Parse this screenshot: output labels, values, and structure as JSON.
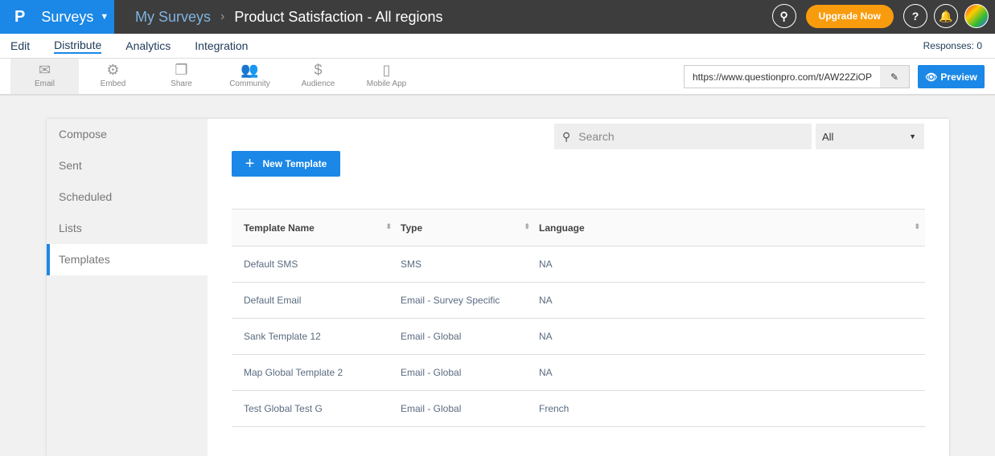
{
  "header": {
    "app": "Surveys",
    "breadcrumb": "My Surveys",
    "title": "Product Satisfaction - All regions",
    "upgrade": "Upgrade Now"
  },
  "nav": {
    "tabs": [
      "Edit",
      "Distribute",
      "Analytics",
      "Integration"
    ],
    "active": "Distribute",
    "responses": "Responses: 0"
  },
  "tools": [
    {
      "label": "Email",
      "icon": "envelope-icon"
    },
    {
      "label": "Embed",
      "icon": "embed-icon"
    },
    {
      "label": "Share",
      "icon": "share-icon"
    },
    {
      "label": "Community",
      "icon": "community-icon"
    },
    {
      "label": "Audience",
      "icon": "audience-icon"
    },
    {
      "label": "Mobile App",
      "icon": "mobile-icon"
    }
  ],
  "url": "https://www.questionpro.com/t/AW22ZiOP",
  "preview": "Preview",
  "sidebar": [
    "Compose",
    "Sent",
    "Scheduled",
    "Lists",
    "Templates"
  ],
  "search_placeholder": "Search",
  "filter": "All",
  "new_template": "New Template",
  "table": {
    "headers": [
      "Template Name",
      "Type",
      "Language"
    ],
    "rows": [
      [
        "Default SMS",
        "SMS",
        "NA"
      ],
      [
        "Default Email",
        "Email - Survey Specific",
        "NA"
      ],
      [
        "Sank Template 12",
        "Email - Global",
        "NA"
      ],
      [
        "Map Global Template 2",
        "Email - Global",
        "NA"
      ],
      [
        "Test Global Test G",
        "Email - Global",
        "French"
      ]
    ]
  },
  "colors": {
    "accent": "#1b87e6",
    "upgrade": "#f89c0e",
    "topbar": "#3d3d3d"
  }
}
